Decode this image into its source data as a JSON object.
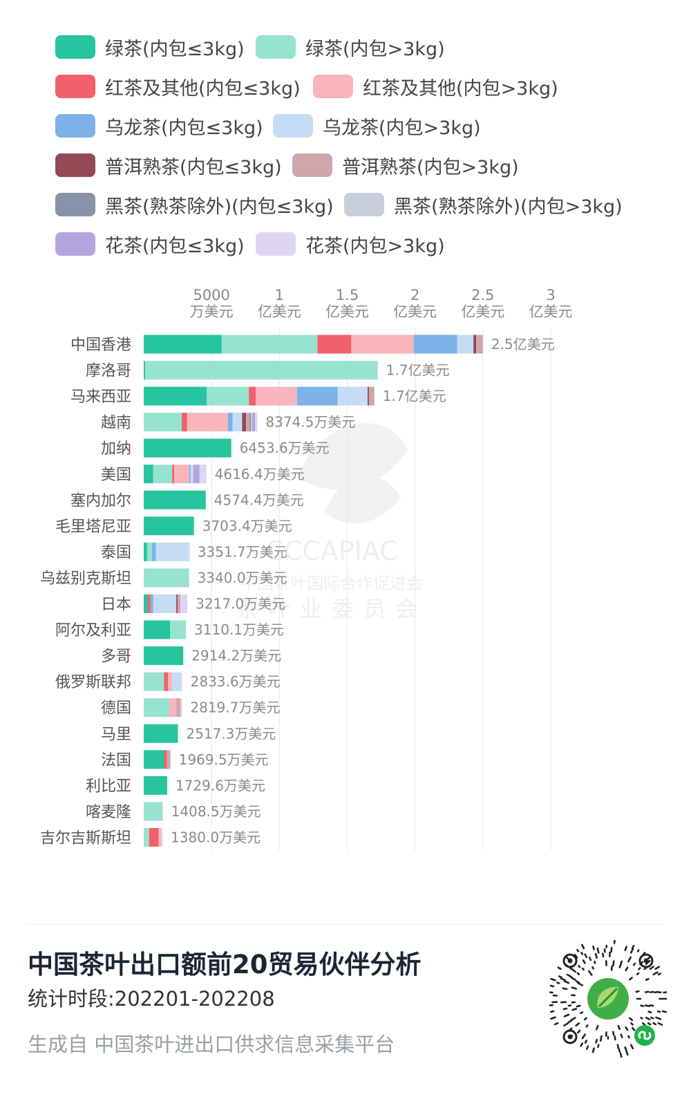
{
  "legend": [
    {
      "label": "绿茶(内包≤3kg)",
      "color": "#27c4a0"
    },
    {
      "label": "绿茶(内包>3kg)",
      "color": "#98e3d0"
    },
    {
      "label": "红茶及其他(内包≤3kg)",
      "color": "#f0616b"
    },
    {
      "label": "红茶及其他(内包>3kg)",
      "color": "#f9b5ba"
    },
    {
      "label": "乌龙茶(内包≤3kg)",
      "color": "#7cb2e8"
    },
    {
      "label": "乌龙茶(内包>3kg)",
      "color": "#c6dcf5"
    },
    {
      "label": "普洱熟茶(内包≤3kg)",
      "color": "#934a55"
    },
    {
      "label": "普洱熟茶(内包>3kg)",
      "color": "#cfa6aa"
    },
    {
      "label": "黑茶(熟茶除外)(内包≤3kg)",
      "color": "#8793a8"
    },
    {
      "label": "黑茶(熟茶除外)(内包>3kg)",
      "color": "#c8cedb"
    },
    {
      "label": "花茶(内包≤3kg)",
      "color": "#b4a4e2"
    },
    {
      "label": "花茶(内包>3kg)",
      "color": "#ddd5f2"
    }
  ],
  "chart_data": {
    "type": "bar",
    "orientation": "horizontal",
    "stacked": true,
    "unit_note": "万美元",
    "xlim": [
      0,
      30000
    ],
    "ticks": [
      {
        "value": 5000,
        "line1": "5000",
        "line2": "万美元"
      },
      {
        "value": 10000,
        "line1": "1",
        "line2": "亿美元"
      },
      {
        "value": 15000,
        "line1": "1.5",
        "line2": "亿美元"
      },
      {
        "value": 20000,
        "line1": "2",
        "line2": "亿美元"
      },
      {
        "value": 25000,
        "line1": "2.5",
        "line2": "亿美元"
      },
      {
        "value": 30000,
        "line1": "3",
        "line2": "亿美元"
      }
    ],
    "categories": [
      "中国香港",
      "摩洛哥",
      "马来西亚",
      "越南",
      "加纳",
      "美国",
      "塞内加尔",
      "毛里塔尼亚",
      "泰国",
      "乌兹别克斯坦",
      "日本",
      "阿尔及利亚",
      "多哥",
      "俄罗斯联邦",
      "德国",
      "马里",
      "法国",
      "利比亚",
      "喀麦隆",
      "吉尔吉斯斯坦"
    ],
    "totals_label": [
      "2.5亿美元",
      "1.7亿美元",
      "1.7亿美元",
      "8374.5万美元",
      "6453.6万美元",
      "4616.4万美元",
      "4574.4万美元",
      "3703.4万美元",
      "3351.7万美元",
      "3340.0万美元",
      "3217.0万美元",
      "3110.1万美元",
      "2914.2万美元",
      "2833.6万美元",
      "2819.7万美元",
      "2517.3万美元",
      "1969.5万美元",
      "1729.6万美元",
      "1408.5万美元",
      "1380.0万美元"
    ],
    "series": [
      {
        "name": "绿茶(内包≤3kg)",
        "values": [
          5750,
          100,
          4650,
          0,
          6453.6,
          700,
          4574.4,
          3703.4,
          250,
          0,
          300,
          1950,
          2914.2,
          0,
          0,
          2517.3,
          1500,
          1729.6,
          0,
          0
        ]
      },
      {
        "name": "绿茶(内包>3kg)",
        "values": [
          7050,
          17150,
          3100,
          2800,
          0,
          1400,
          0,
          0,
          350,
          3340.0,
          0,
          1160.1,
          0,
          1500,
          1900,
          0,
          0,
          0,
          1408.5,
          400
        ]
      },
      {
        "name": "红茶及其他(内包≤3kg)",
        "values": [
          2500,
          0,
          500,
          400,
          0,
          150,
          0,
          0,
          0,
          0,
          200,
          0,
          0,
          300,
          0,
          0,
          200,
          0,
          0,
          700
        ]
      },
      {
        "name": "红茶及其他(内包>3kg)",
        "values": [
          4600,
          0,
          3050,
          3000,
          0,
          1100,
          0,
          0,
          0,
          0,
          0,
          0,
          0,
          300,
          500,
          0,
          0,
          0,
          0,
          200
        ]
      },
      {
        "name": "乌龙茶(内包≤3kg)",
        "values": [
          3200,
          0,
          3000,
          350,
          0,
          100,
          0,
          0,
          300,
          0,
          200,
          0,
          0,
          0,
          0,
          0,
          0,
          0,
          0,
          0
        ]
      },
      {
        "name": "乌龙茶(内包>3kg)",
        "values": [
          1200,
          0,
          2200,
          700,
          0,
          200,
          0,
          0,
          2450,
          0,
          1700,
          0,
          0,
          633.6,
          0,
          0,
          0,
          0,
          0,
          0
        ]
      },
      {
        "name": "普洱熟茶(内包≤3kg)",
        "values": [
          200,
          0,
          100,
          300,
          0,
          0,
          0,
          0,
          0,
          0,
          100,
          0,
          0,
          0,
          0,
          0,
          0,
          0,
          0,
          0
        ]
      },
      {
        "name": "普洱熟茶(内包>3kg)",
        "values": [
          500,
          0,
          400,
          250,
          0,
          0,
          0,
          0,
          0,
          0,
          200,
          0,
          0,
          0,
          300,
          0,
          269.5,
          0,
          0,
          0
        ]
      },
      {
        "name": "黑茶(熟茶除外)(内包≤3kg)",
        "values": [
          0,
          0,
          0,
          100,
          0,
          0,
          0,
          0,
          0,
          0,
          0,
          0,
          0,
          0,
          0,
          0,
          0,
          0,
          0,
          0
        ]
      },
      {
        "name": "黑茶(熟茶除外)(内包>3kg)",
        "values": [
          0,
          0,
          0,
          100,
          0,
          0,
          0,
          0,
          0,
          0,
          0,
          0,
          0,
          0,
          0,
          0,
          0,
          0,
          0,
          0
        ]
      },
      {
        "name": "花茶(内包≤3kg)",
        "values": [
          0,
          0,
          0,
          200,
          0,
          466.4,
          0,
          0,
          0,
          0,
          0,
          0,
          0,
          0,
          0,
          0,
          0,
          0,
          0,
          0
        ]
      },
      {
        "name": "花茶(内包>3kg)",
        "values": [
          0,
          0,
          0,
          174.5,
          0,
          500,
          0,
          0,
          1.7,
          0,
          517,
          0,
          0,
          100,
          119.7,
          0,
          0,
          0,
          0,
          80
        ]
      }
    ]
  },
  "watermark": {
    "line1": "CCCAPIAC",
    "line2": "中国茶叶国际合作促进会",
    "line3": "茶叶业委员会"
  },
  "footer": {
    "title": "中国茶叶出口额前20贸易伙伴分析",
    "period": "统计时段:202201-202208",
    "source": "生成自 中国茶叶进出口供求信息采集平台"
  },
  "qr_icon": "mini-program-code-icon",
  "colors": {
    "grid": "#e6e6e6",
    "axis_text": "#888888",
    "cat_text": "#555555"
  }
}
